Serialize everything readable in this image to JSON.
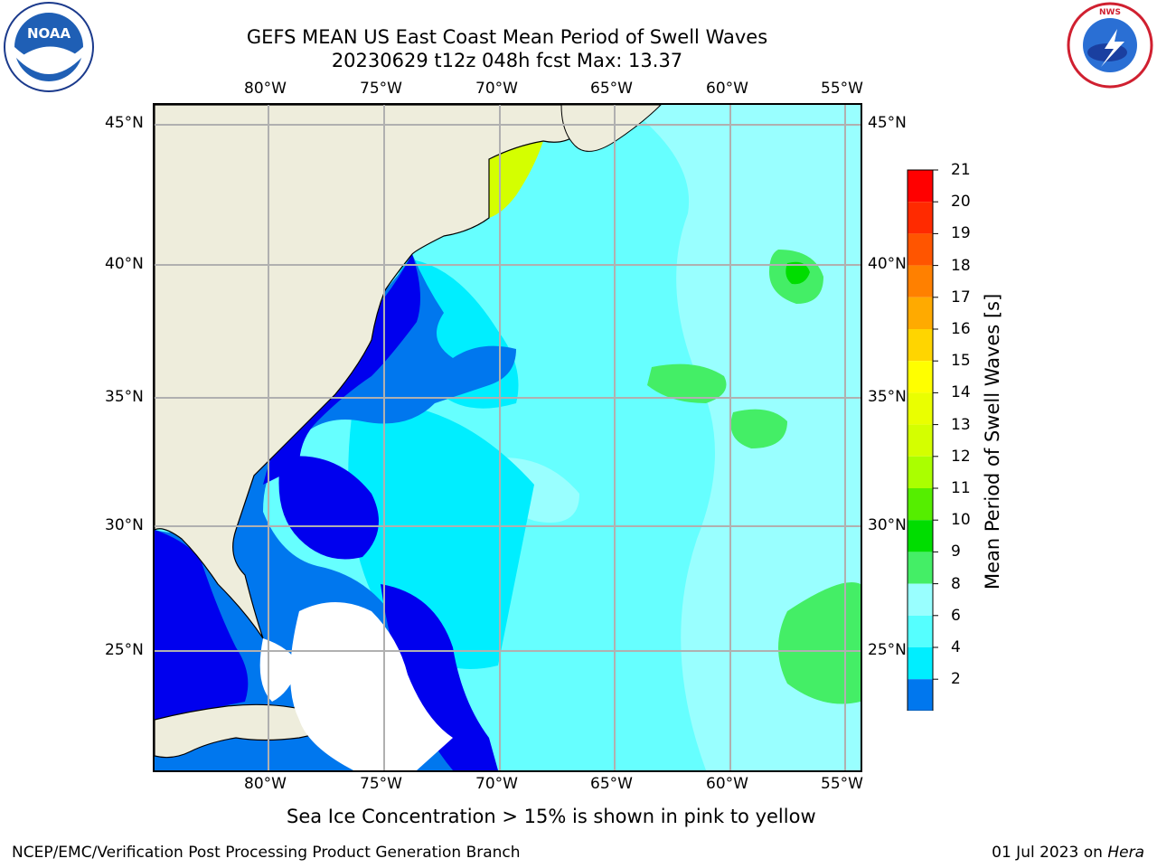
{
  "header": {
    "title_line1": "GEFS MEAN US East Coast Mean Period of Swell Waves",
    "title_line2": "20230629 t12z 048h fcst   Max: 13.37"
  },
  "logos": {
    "left": {
      "text": "NOAA",
      "icon": "noaa-logo-icon"
    },
    "right": {
      "text": "NATIONAL WEATHER SERVICE",
      "icon": "nws-logo-icon"
    }
  },
  "map": {
    "lon_labels": [
      "80°W",
      "75°W",
      "70°W",
      "65°W",
      "60°W",
      "55°W"
    ],
    "lat_labels": [
      "45°N",
      "40°N",
      "35°N",
      "30°N",
      "25°N"
    ],
    "colors": {
      "land": "#eeeddc",
      "missing": "#ffffff",
      "gridline": "#b0b0b0"
    }
  },
  "colorbar": {
    "title": "Mean Period of Swell Waves [s]",
    "ticks": [
      "21",
      "20",
      "19",
      "18",
      "17",
      "16",
      "15",
      "14",
      "13",
      "12",
      "11",
      "10",
      "9",
      "8",
      "6",
      "4",
      "2"
    ],
    "colors": [
      "#ff0000",
      "#ff2a00",
      "#ff5500",
      "#ff8000",
      "#ffaa00",
      "#ffd500",
      "#ffff00",
      "#eaff00",
      "#d4ff00",
      "#aaff00",
      "#55ee00",
      "#00dd00",
      "#44ee66",
      "#99ffff",
      "#55ffff",
      "#00eeff",
      "#0077ee"
    ],
    "extend_color": "#0000ee"
  },
  "notes": {
    "ice_note": "Sea Ice Concentration > 15% is shown in pink to yellow"
  },
  "footer": {
    "left": "NCEP/EMC/Verification Post Processing Product Generation Branch",
    "date": "01 Jul 2023 on ",
    "host": "Hera"
  }
}
